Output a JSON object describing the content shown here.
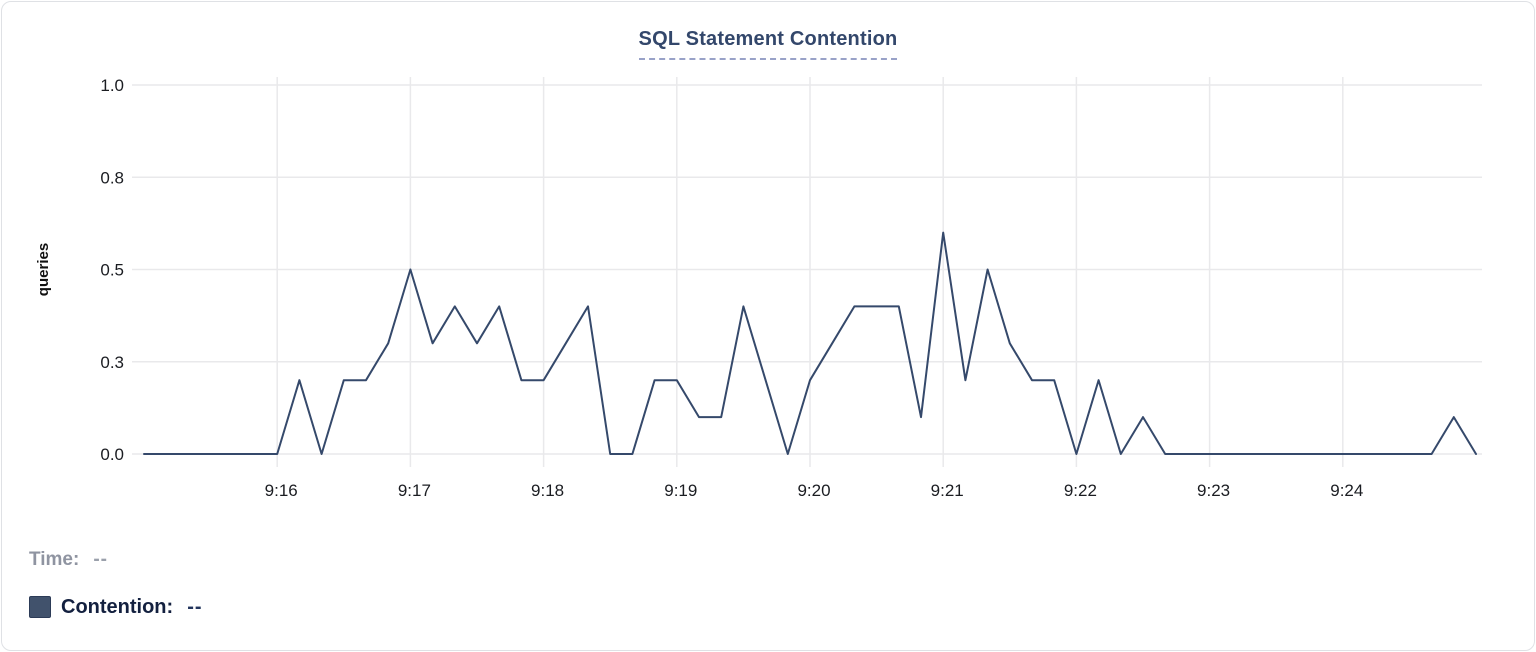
{
  "card": {
    "title": "SQL Statement Contention"
  },
  "legend": {
    "time_label": "Time:",
    "time_value": "--",
    "series_label": "Contention:",
    "series_value": "--",
    "swatch_icon": "contention-series-swatch"
  },
  "colors": {
    "line": "#35496b",
    "swatch": "#41526c",
    "title": "#33476b",
    "title_underline": "#99a2c8",
    "grid": "#e9e9eb",
    "tick_text": "#1b1d22",
    "axis_label": "#111111"
  },
  "chart_data": {
    "type": "line",
    "title": "SQL Statement Contention",
    "xlabel": "",
    "ylabel": "queries",
    "ylim": [
      0,
      1.0
    ],
    "grid": true,
    "legend_position": "bottom-left",
    "x_tick_labels": [
      "9:16",
      "9:17",
      "9:18",
      "9:19",
      "9:20",
      "9:21",
      "9:22",
      "9:23",
      "9:24"
    ],
    "y_tick_labels": [
      "0.0",
      "0.3",
      "0.5",
      "0.8",
      "1.0"
    ],
    "y_tick_values": [
      0,
      0.25,
      0.5,
      0.75,
      1.0
    ],
    "x_start": "9:15:00",
    "x_end": "9:25:00",
    "sample_interval_seconds": 10,
    "series": [
      {
        "name": "Contention",
        "times": [
          "9:15:00",
          "9:15:10",
          "9:15:20",
          "9:15:30",
          "9:15:40",
          "9:15:50",
          "9:16:00",
          "9:16:10",
          "9:16:20",
          "9:16:30",
          "9:16:40",
          "9:16:50",
          "9:17:00",
          "9:17:10",
          "9:17:20",
          "9:17:30",
          "9:17:40",
          "9:17:50",
          "9:18:00",
          "9:18:10",
          "9:18:20",
          "9:18:30",
          "9:18:40",
          "9:18:50",
          "9:19:00",
          "9:19:10",
          "9:19:20",
          "9:19:30",
          "9:19:40",
          "9:19:50",
          "9:20:00",
          "9:20:10",
          "9:20:20",
          "9:20:30",
          "9:20:40",
          "9:20:50",
          "9:21:00",
          "9:21:10",
          "9:21:20",
          "9:21:30",
          "9:21:40",
          "9:21:50",
          "9:22:00",
          "9:22:10",
          "9:22:20",
          "9:22:30",
          "9:22:40",
          "9:22:50",
          "9:23:00",
          "9:23:10",
          "9:23:20",
          "9:23:30",
          "9:23:40",
          "9:23:50",
          "9:24:00",
          "9:24:10",
          "9:24:20",
          "9:24:30",
          "9:24:40",
          "9:24:50",
          "9:25:00"
        ],
        "values": [
          0,
          0,
          0,
          0,
          0,
          0,
          0,
          0.2,
          0,
          0.2,
          0.2,
          0.3,
          0.5,
          0.3,
          0.4,
          0.3,
          0.4,
          0.2,
          0.2,
          0.3,
          0.4,
          0,
          0,
          0.2,
          0.2,
          0.1,
          0.1,
          0.4,
          0.2,
          0,
          0.2,
          0.3,
          0.4,
          0.4,
          0.4,
          0.1,
          0.6,
          0.2,
          0.5,
          0.3,
          0.2,
          0.2,
          0,
          0.2,
          0,
          0.1,
          0,
          0,
          0,
          0,
          0,
          0,
          0,
          0,
          0,
          0,
          0,
          0,
          0,
          0.1,
          0
        ]
      }
    ]
  }
}
